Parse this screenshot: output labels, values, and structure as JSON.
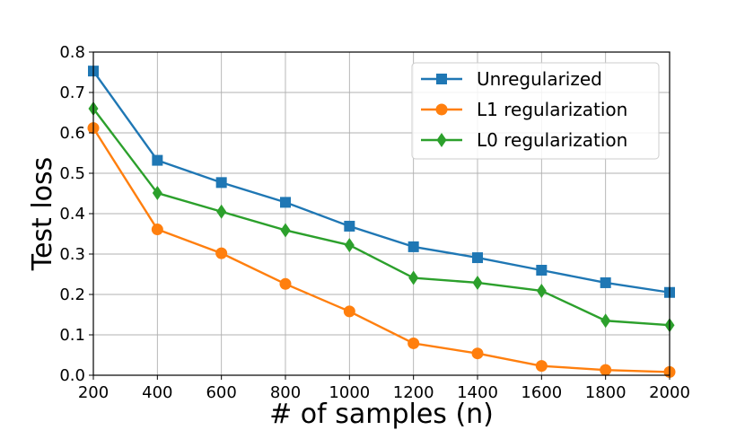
{
  "chart_data": {
    "type": "line",
    "title": "",
    "xlabel": "# of samples (n)",
    "ylabel": "Test loss",
    "x": [
      200,
      400,
      600,
      800,
      1000,
      1200,
      1400,
      1600,
      1800,
      2000
    ],
    "xlim": [
      200,
      2000
    ],
    "ylim": [
      0.0,
      0.8
    ],
    "xticks": [
      "200",
      "400",
      "600",
      "800",
      "1000",
      "1200",
      "1400",
      "1600",
      "1800",
      "2000"
    ],
    "yticks": [
      "0.0",
      "0.1",
      "0.2",
      "0.3",
      "0.4",
      "0.5",
      "0.6",
      "0.7",
      "0.8"
    ],
    "grid": true,
    "legend_position": "top-right",
    "series": [
      {
        "name": "Unregularized",
        "color": "#1f77b4",
        "marker": "square",
        "values": [
          0.753,
          0.532,
          0.477,
          0.428,
          0.369,
          0.318,
          0.291,
          0.26,
          0.229,
          0.205
        ]
      },
      {
        "name": "L1 regularization",
        "color": "#ff7f0e",
        "marker": "circle",
        "values": [
          0.612,
          0.361,
          0.302,
          0.226,
          0.158,
          0.079,
          0.054,
          0.023,
          0.013,
          0.008
        ]
      },
      {
        "name": "L0 regularization",
        "color": "#2ca02c",
        "marker": "diamond",
        "values": [
          0.66,
          0.451,
          0.405,
          0.359,
          0.322,
          0.241,
          0.229,
          0.209,
          0.135,
          0.124
        ]
      }
    ]
  }
}
